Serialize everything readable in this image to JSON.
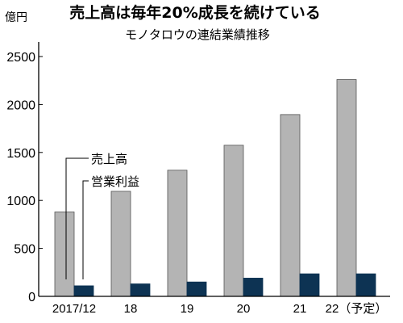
{
  "chart_data": {
    "type": "bar",
    "title": "売上高は毎年20%成長を続けている",
    "subtitle": "モノタロウの連結業績推移",
    "ylabel": "億円",
    "xlabel": "",
    "ylim": [
      0,
      2600
    ],
    "yticks": [
      0,
      500,
      1000,
      1500,
      2000,
      2500
    ],
    "grid": false,
    "categories": [
      "2017/12",
      "18",
      "19",
      "20",
      "21",
      "22（予定）"
    ],
    "series": [
      {
        "name": "売上高",
        "color": "#b4b4b4",
        "values": [
          880,
          1095,
          1315,
          1575,
          1895,
          2260
        ]
      },
      {
        "name": "営業利益",
        "color": "#0d3353",
        "values": [
          110,
          130,
          150,
          190,
          235,
          235
        ]
      }
    ],
    "legend_placement": "inline callouts, left of bars"
  }
}
